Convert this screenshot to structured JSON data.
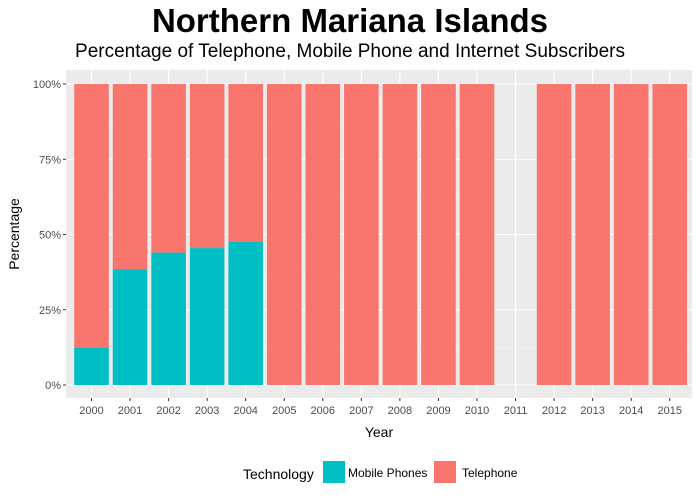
{
  "chart_data": {
    "type": "bar",
    "stacked": true,
    "title": "Northern Mariana Islands",
    "subtitle": "Percentage of Telephone, Mobile Phone and Internet Subscribers",
    "xlabel": "Year",
    "ylabel": "Percentage",
    "ylim": [
      0,
      100
    ],
    "yticks": [
      "0%",
      "25%",
      "50%",
      "75%",
      "100%"
    ],
    "ytick_values": [
      0,
      25,
      50,
      75,
      100
    ],
    "categories": [
      "2000",
      "2001",
      "2002",
      "2003",
      "2004",
      "2005",
      "2006",
      "2007",
      "2008",
      "2009",
      "2010",
      "2011",
      "2012",
      "2013",
      "2014",
      "2015"
    ],
    "series": [
      {
        "name": "Mobile Phones",
        "color": "#00BFC4",
        "values": [
          12.5,
          38.5,
          44,
          45.5,
          47.5,
          0,
          0,
          0,
          0,
          0,
          0,
          0,
          0,
          0,
          0,
          0
        ]
      },
      {
        "name": "Telephone",
        "color": "#F8766D",
        "values": [
          87.5,
          61.5,
          56,
          54.5,
          52.5,
          100,
          100,
          100,
          100,
          100,
          100,
          0,
          100,
          100,
          100,
          100
        ]
      }
    ],
    "grid": true,
    "legend_title": "Technology",
    "legend_position": "bottom"
  }
}
